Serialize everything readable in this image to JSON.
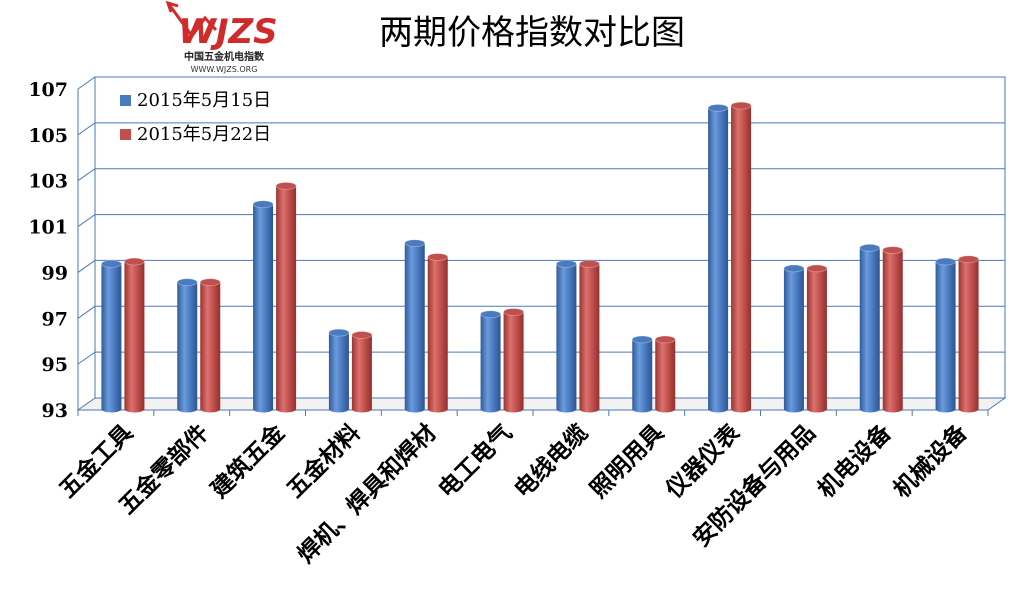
{
  "logo": {
    "name": "WJZS",
    "subtitle": "中国五金机电指数",
    "url": "WWW.WJZS.ORG",
    "color": "#d12a2a"
  },
  "chart_data": {
    "type": "bar",
    "title": "两期价格指数对比图",
    "xlabel": "",
    "ylabel": "",
    "ylim": [
      93,
      107
    ],
    "yticks": [
      93,
      95,
      97,
      99,
      101,
      103,
      105,
      107
    ],
    "grid": true,
    "legend_position": "top-left",
    "categories": [
      "五金工具",
      "五金零部件",
      "建筑五金",
      "五金材料",
      "焊机、焊具和焊材",
      "电工电气",
      "电线电缆",
      "照明用具",
      "仪器仪表",
      "安防设备与用品",
      "机电设备",
      "机械设备"
    ],
    "series": [
      {
        "name": "2015年5月15日",
        "color": "#4a7ac0",
        "values": [
          99.2,
          98.4,
          101.8,
          96.2,
          100.1,
          97.0,
          99.2,
          95.9,
          106.0,
          99.0,
          99.9,
          99.3
        ]
      },
      {
        "name": "2015年5月22日",
        "color": "#c0504d",
        "values": [
          99.3,
          98.4,
          102.6,
          96.1,
          99.5,
          97.1,
          99.2,
          95.9,
          106.1,
          99.0,
          99.8,
          99.4
        ]
      }
    ]
  }
}
